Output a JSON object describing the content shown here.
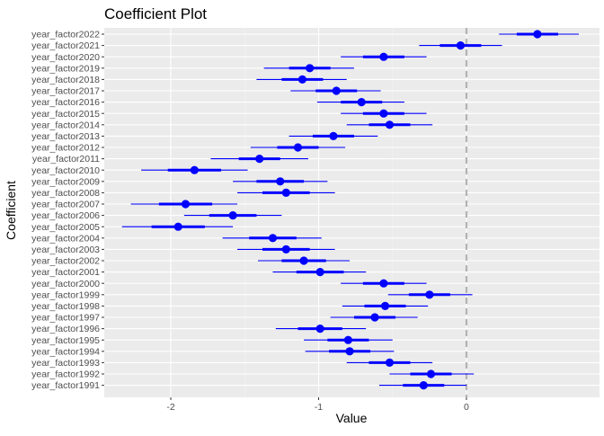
{
  "chart_data": {
    "type": "scatter",
    "title": "Coefficient Plot",
    "xlabel": "Value",
    "ylabel": "Coefficient",
    "xlim": [
      -2.45,
      0.9
    ],
    "x_ticks": [
      -2,
      -1,
      0
    ],
    "x_tick_labels": [
      "-2",
      "-1",
      "0"
    ],
    "reference_line": {
      "x": 0,
      "style": "dashed",
      "color": "#b3b3b3"
    },
    "grid": true,
    "legend": "none",
    "colors": {
      "panel_background": "#ebebeb",
      "grid_major": "#ffffff",
      "grid_minor": "#f5f5f5",
      "point": "#0000ff"
    },
    "categories": [
      "year_factor2022",
      "year_factor2021",
      "year_factor2020",
      "year_factor2019",
      "year_factor2018",
      "year_factor2017",
      "year_factor2016",
      "year_factor2015",
      "year_factor2014",
      "year_factor2013",
      "year_factor2012",
      "year_factor2011",
      "year_factor2010",
      "year_factor2009",
      "year_factor2008",
      "year_factor2007",
      "year_factor2006",
      "year_factor2005",
      "year_factor2004",
      "year_factor2003",
      "year_factor2002",
      "year_factor2001",
      "year_factor2000",
      "year_factor1999",
      "year_factor1998",
      "year_factor1997",
      "year_factor1996",
      "year_factor1995",
      "year_factor1994",
      "year_factor1993",
      "year_factor1992",
      "year_factor1991"
    ],
    "series": [
      {
        "estimate": [
          0.48,
          -0.04,
          -0.56,
          -1.06,
          -1.11,
          -0.88,
          -0.71,
          -0.56,
          -0.52,
          -0.9,
          -1.14,
          -1.4,
          -1.84,
          -1.26,
          -1.22,
          -1.9,
          -1.58,
          -1.95,
          -1.31,
          -1.22,
          -1.1,
          -0.99,
          -0.56,
          -0.25,
          -0.55,
          -0.62,
          -0.99,
          -0.8,
          -0.79,
          -0.52,
          -0.24,
          -0.29
        ],
        "inner_low": [
          0.34,
          -0.18,
          -0.7,
          -1.2,
          -1.25,
          -1.02,
          -0.85,
          -0.7,
          -0.66,
          -1.04,
          -1.28,
          -1.54,
          -2.02,
          -1.42,
          -1.38,
          -2.08,
          -1.74,
          -2.13,
          -1.47,
          -1.38,
          -1.25,
          -1.15,
          -0.7,
          -0.39,
          -0.69,
          -0.76,
          -1.14,
          -0.94,
          -0.93,
          -0.66,
          -0.38,
          -0.43
        ],
        "inner_high": [
          0.62,
          0.1,
          -0.42,
          -0.92,
          -0.97,
          -0.74,
          -0.57,
          -0.42,
          -0.38,
          -0.76,
          -1.0,
          -1.26,
          -1.66,
          -1.1,
          -1.06,
          -1.72,
          -1.42,
          -1.77,
          -1.15,
          -1.06,
          -0.95,
          -0.83,
          -0.42,
          -0.11,
          -0.41,
          -0.48,
          -0.84,
          -0.66,
          -0.65,
          -0.38,
          -0.1,
          -0.15
        ],
        "outer_low": [
          0.22,
          -0.32,
          -0.85,
          -1.37,
          -1.42,
          -1.19,
          -1.01,
          -0.85,
          -0.81,
          -1.2,
          -1.46,
          -1.73,
          -2.2,
          -1.58,
          -1.55,
          -2.27,
          -1.91,
          -2.33,
          -1.65,
          -1.55,
          -1.41,
          -1.31,
          -0.85,
          -0.53,
          -0.84,
          -0.92,
          -1.29,
          -1.1,
          -1.09,
          -0.81,
          -0.52,
          -0.59
        ],
        "outer_high": [
          0.76,
          0.24,
          -0.27,
          -0.76,
          -0.81,
          -0.58,
          -0.42,
          -0.27,
          -0.23,
          -0.6,
          -0.82,
          -1.07,
          -1.48,
          -0.94,
          -0.89,
          -1.55,
          -1.25,
          -1.58,
          -0.98,
          -0.89,
          -0.79,
          -0.68,
          -0.27,
          0.04,
          -0.26,
          -0.33,
          -0.68,
          -0.5,
          -0.49,
          -0.23,
          0.05,
          0.0
        ]
      }
    ]
  }
}
